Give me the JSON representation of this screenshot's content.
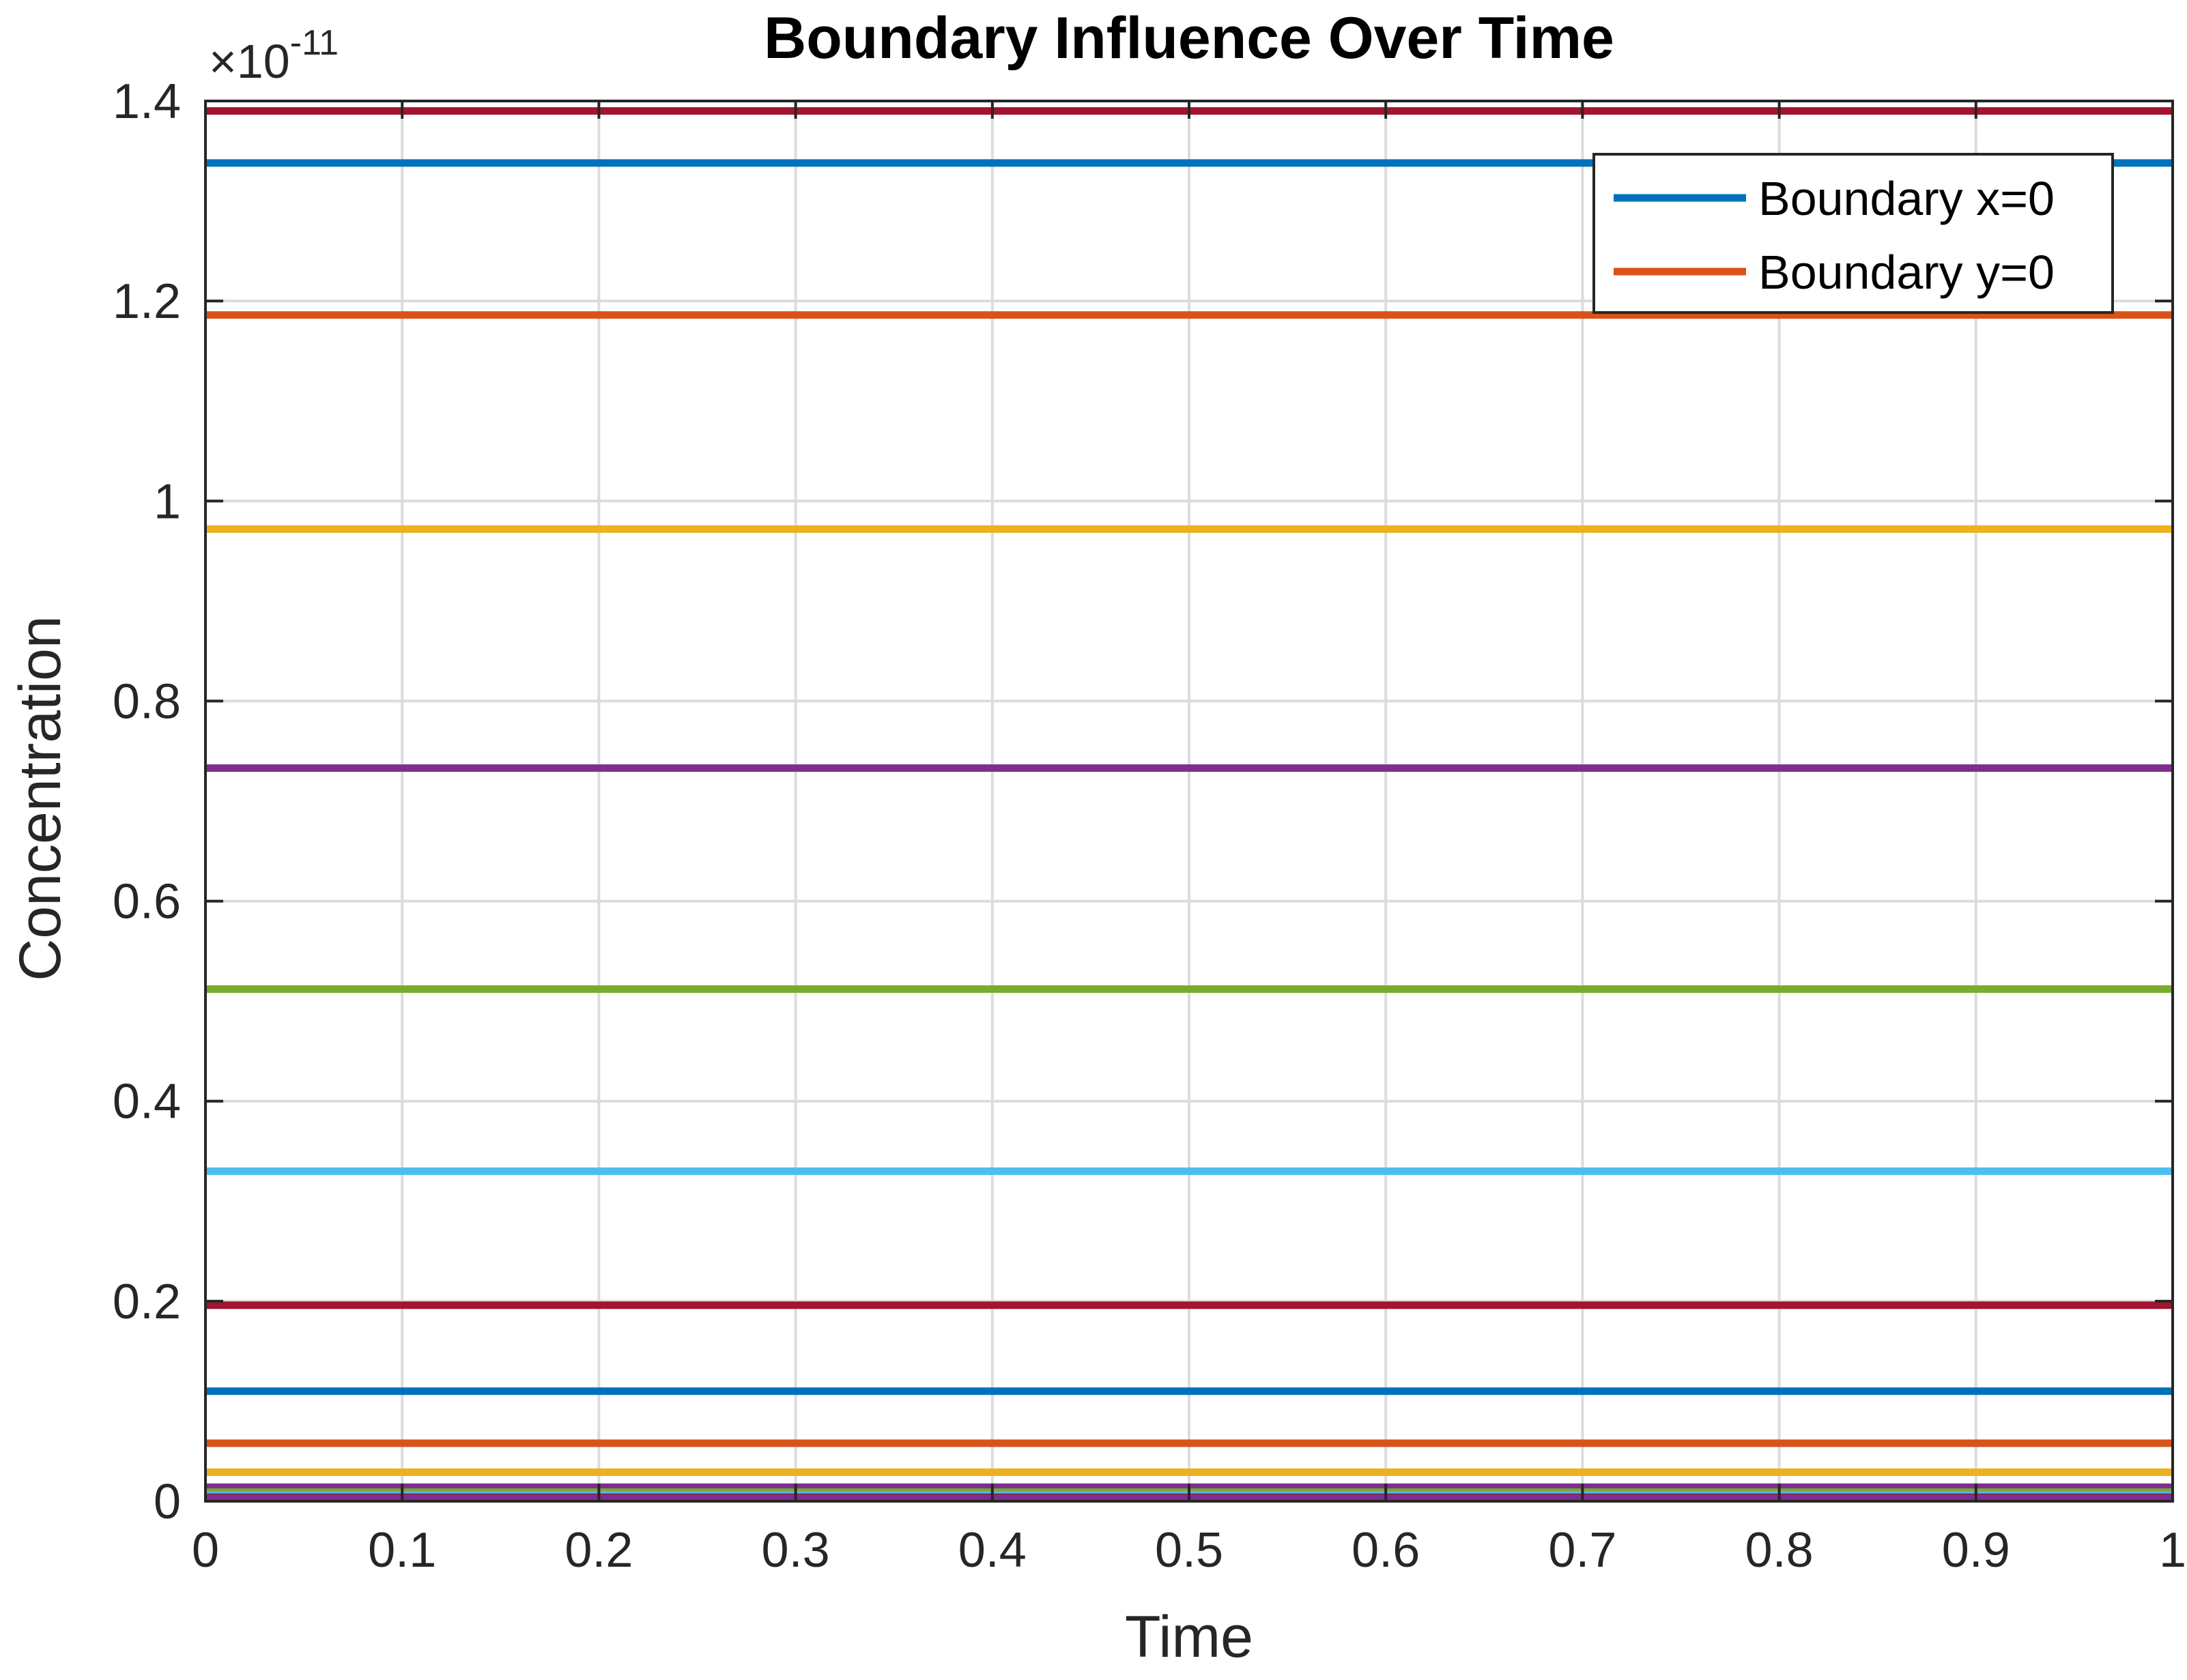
{
  "chart_data": {
    "type": "line",
    "title": "Boundary Influence Over Time",
    "xlabel": "Time",
    "ylabel": "Concentration",
    "y_exponent_label": "×10",
    "y_exponent_power": "-11",
    "xlim": [
      0,
      1
    ],
    "ylim": [
      0,
      1.4
    ],
    "x_ticks": [
      0,
      0.1,
      0.2,
      0.3,
      0.4,
      0.5,
      0.6,
      0.7,
      0.8,
      0.9,
      1
    ],
    "x_tick_labels": [
      "0",
      "0.1",
      "0.2",
      "0.3",
      "0.4",
      "0.5",
      "0.6",
      "0.7",
      "0.8",
      "0.9",
      "1"
    ],
    "y_ticks": [
      0,
      0.2,
      0.4,
      0.6,
      0.8,
      1,
      1.2,
      1.4
    ],
    "y_tick_labels": [
      "0",
      "0.2",
      "0.4",
      "0.6",
      "0.8",
      "1",
      "1.2",
      "1.4"
    ],
    "grid": true,
    "legend_position": "top-right",
    "x": [
      0,
      1
    ],
    "series": [
      {
        "name": "Boundary x=0",
        "color": "#0072BD",
        "values": [
          1.338,
          1.338
        ]
      },
      {
        "name": "Boundary y=0",
        "color": "#D95319",
        "values": [
          1.186,
          1.186
        ]
      },
      {
        "color": "#EDB120",
        "values": [
          0.972,
          0.972
        ]
      },
      {
        "color": "#7E2F8E",
        "values": [
          0.733,
          0.733
        ]
      },
      {
        "color": "#77AC30",
        "values": [
          0.512,
          0.512
        ]
      },
      {
        "color": "#4DBEEE",
        "values": [
          0.33,
          0.33
        ]
      },
      {
        "color": "#A2142F",
        "values": [
          0.196,
          0.196
        ]
      },
      {
        "color": "#0072BD",
        "values": [
          0.11,
          0.11
        ]
      },
      {
        "color": "#D95319",
        "values": [
          0.058,
          0.058
        ]
      },
      {
        "color": "#EDB120",
        "values": [
          0.029,
          0.029
        ]
      },
      {
        "color": "#7E2F8E",
        "values": [
          0.014,
          0.014
        ]
      },
      {
        "color": "#77AC30",
        "values": [
          0.009,
          0.009
        ]
      },
      {
        "color": "#4DBEEE",
        "values": [
          0.006,
          0.006
        ]
      },
      {
        "color": "#A2142F",
        "values": [
          0.004,
          0.004
        ]
      },
      {
        "color": "#7E2F8E",
        "values": [
          0.003,
          0.003
        ]
      },
      {
        "color": "#A2142F",
        "values": [
          1.39,
          1.39
        ]
      }
    ]
  }
}
